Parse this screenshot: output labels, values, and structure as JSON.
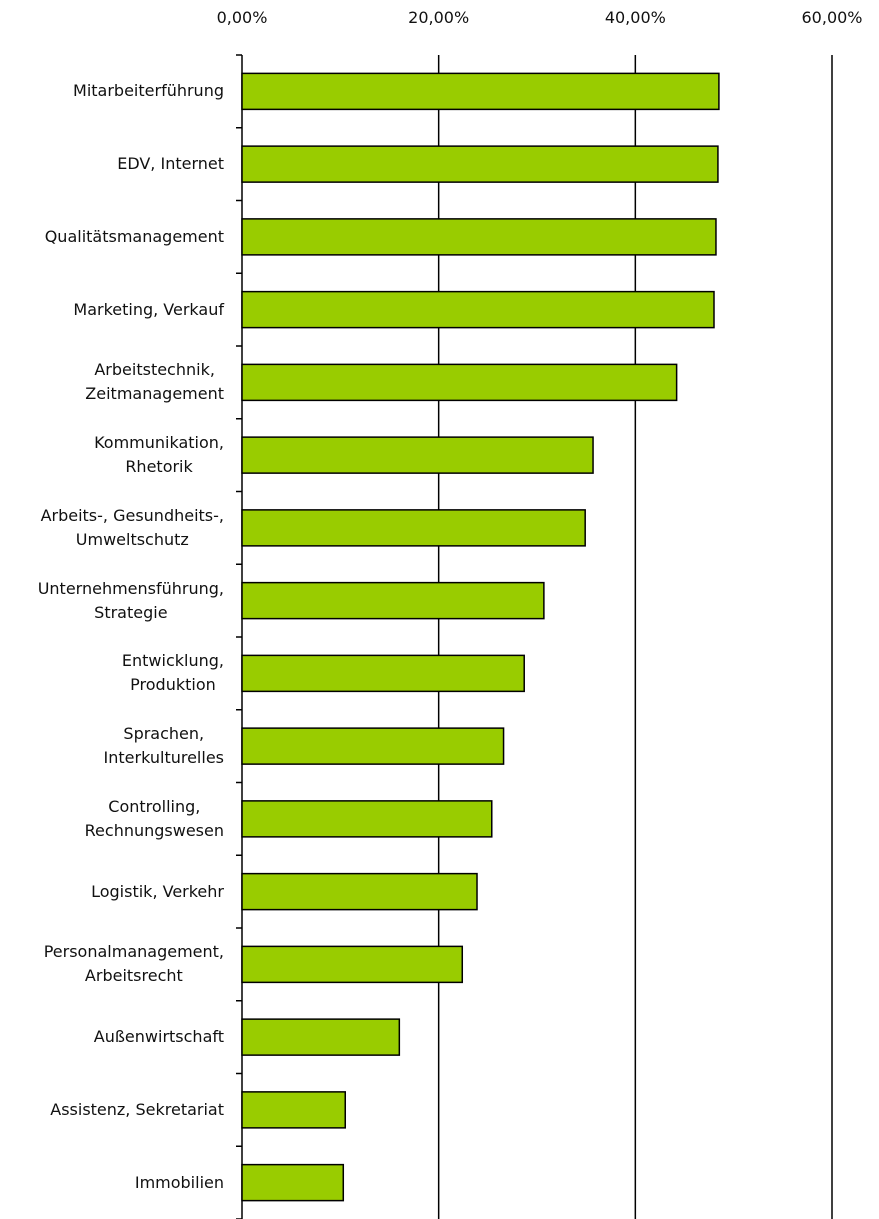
{
  "chart_data": {
    "type": "bar",
    "orientation": "horizontal",
    "categories": [
      "Mitarbeiterführung",
      "EDV, Internet",
      "Qualitätsmanagement",
      "Marketing, Verkauf",
      "Arbeitstechnik,\nZeitmanagement",
      "Kommunikation,\nRhetorik",
      "Arbeits-, Gesundheits-,\nUmweltschutz",
      "Unternehmensführung,\nStrategie",
      "Entwicklung,\nProduktion",
      "Sprachen,\nInterkulturelles",
      "Controlling,\nRechnungswesen",
      "Logistik, Verkehr",
      "Personalmanagement,\nArbeitsrecht",
      "Außenwirtschaft",
      "Assistenz, Sekretariat",
      "Immobilien"
    ],
    "values": [
      48.5,
      48.4,
      48.2,
      48.0,
      44.2,
      35.7,
      34.9,
      30.7,
      28.7,
      26.6,
      25.4,
      23.9,
      22.4,
      16.0,
      10.5,
      10.3
    ],
    "color": "#99cc00",
    "xlim": [
      0,
      60
    ],
    "xticks": [
      {
        "value": 0,
        "label": "0,00%"
      },
      {
        "value": 20,
        "label": "20,00%"
      },
      {
        "value": 40,
        "label": "40,00%"
      },
      {
        "value": 60,
        "label": "60,00%"
      }
    ],
    "grid": true
  }
}
